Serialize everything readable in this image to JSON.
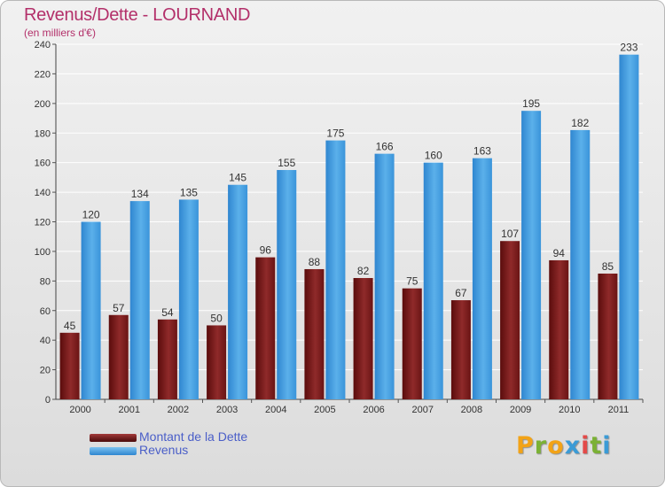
{
  "title": "Revenus/Dette - LOURNAND",
  "subtitle": "(en milliers d'€)",
  "logo": {
    "text": "Proxiti",
    "letters": [
      "P",
      "r",
      "o",
      "x",
      "i",
      "t",
      "i"
    ],
    "colors": [
      "#f2a317",
      "#7bb135",
      "#f2a317",
      "#3b9bd6",
      "#e34a48",
      "#7bb135",
      "#3b9bd6"
    ]
  },
  "legend": [
    {
      "label": "Montant de la Dette",
      "color": "#6b1212"
    },
    {
      "label": "Revenus",
      "color": "#3a8fd6"
    }
  ],
  "chart_data": {
    "type": "bar",
    "categories": [
      "2000",
      "2001",
      "2002",
      "2003",
      "2004",
      "2005",
      "2006",
      "2007",
      "2008",
      "2009",
      "2010",
      "2011"
    ],
    "series": [
      {
        "name": "Montant de la Dette",
        "color": "#7a1c1c",
        "values": [
          45,
          57,
          54,
          50,
          96,
          88,
          82,
          75,
          67,
          107,
          94,
          85
        ]
      },
      {
        "name": "Revenus",
        "color": "#4aa3e4",
        "values": [
          120,
          134,
          135,
          145,
          155,
          175,
          166,
          160,
          163,
          195,
          182,
          233
        ]
      }
    ],
    "ylim": [
      0,
      240
    ],
    "yticks": [
      0,
      20,
      40,
      60,
      80,
      100,
      120,
      140,
      160,
      180,
      200,
      220,
      240
    ],
    "grid": true,
    "legend_position": "bottom-left"
  }
}
